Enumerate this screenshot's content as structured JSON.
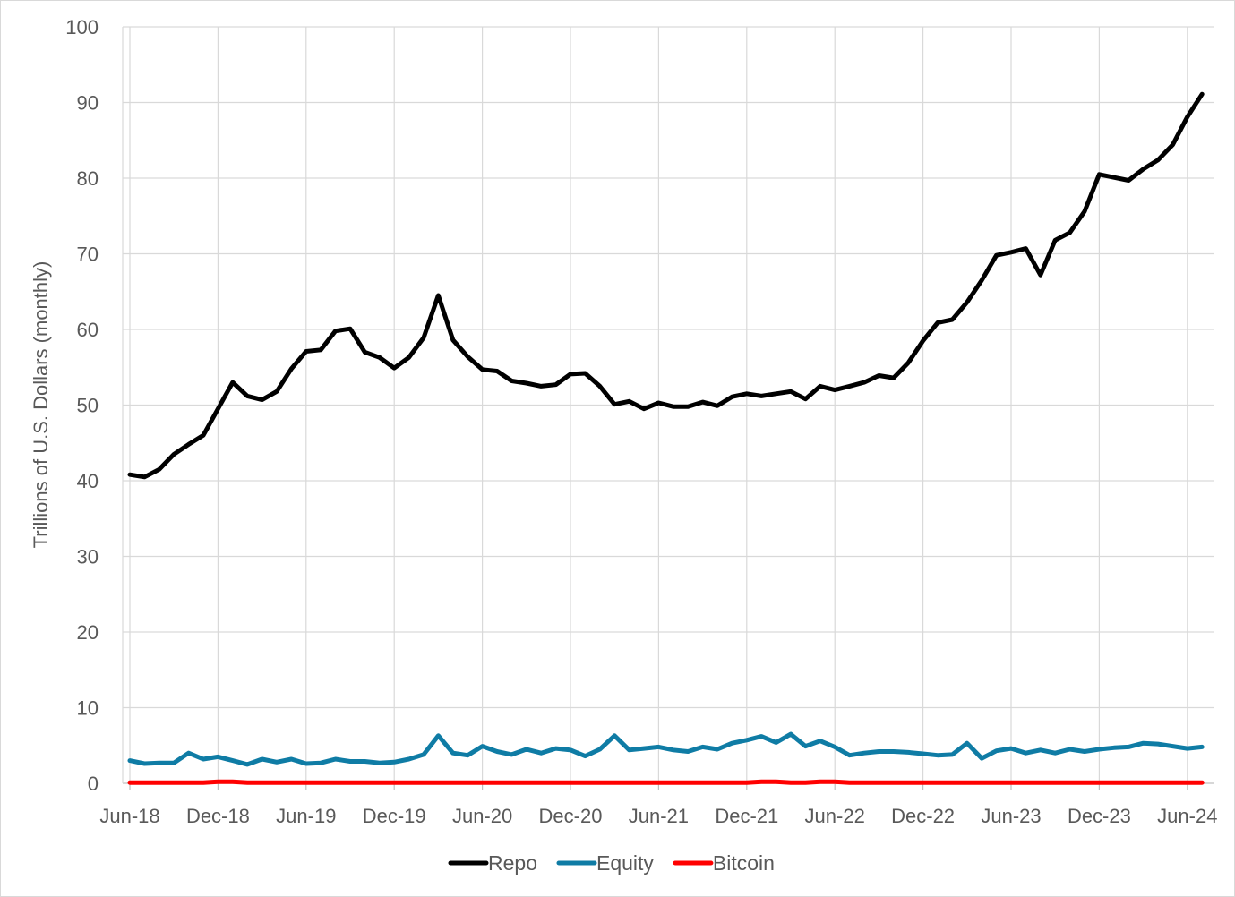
{
  "chart_data": {
    "type": "line",
    "title": "",
    "xlabel": "",
    "ylabel": "Trillions of U.S. Dollars (monthly)",
    "ylim": [
      0,
      100
    ],
    "yticks": [
      0,
      10,
      20,
      30,
      40,
      50,
      60,
      70,
      80,
      90,
      100
    ],
    "x_tick_labels": [
      "Jun-18",
      "Dec-18",
      "Jun-19",
      "Dec-19",
      "Jun-20",
      "Dec-20",
      "Jun-21",
      "Dec-21",
      "Jun-22",
      "Dec-22",
      "Jun-23",
      "Dec-23",
      "Jun-24"
    ],
    "x_start": "Jun-18",
    "x_end": "Aug-24",
    "grid": true,
    "legend_position": "bottom",
    "series": [
      {
        "name": "Repo",
        "color": "#000000",
        "values": [
          40.8,
          40.5,
          41.5,
          43.5,
          44.8,
          46.0,
          49.5,
          53.0,
          51.2,
          50.7,
          51.8,
          54.8,
          57.1,
          57.3,
          59.8,
          60.1,
          57.0,
          56.3,
          54.9,
          56.3,
          58.9,
          64.5,
          58.6,
          56.4,
          54.7,
          54.5,
          53.2,
          52.9,
          52.5,
          52.7,
          54.1,
          54.2,
          52.5,
          50.1,
          50.5,
          49.5,
          50.3,
          49.8,
          49.8,
          50.4,
          49.9,
          51.1,
          51.5,
          51.2,
          51.5,
          51.8,
          50.8,
          52.5,
          52.0,
          52.5,
          53.0,
          53.9,
          53.6,
          55.6,
          58.5,
          60.9,
          61.3,
          63.6,
          66.5,
          69.8,
          70.2,
          70.7,
          67.2,
          71.8,
          72.8,
          75.6,
          80.5,
          80.1,
          79.7,
          81.2,
          82.4,
          84.4,
          88.1,
          91.1
        ]
      },
      {
        "name": "Equity",
        "color": "#0f7ca5",
        "values": [
          3.0,
          2.6,
          2.7,
          2.7,
          4.0,
          3.2,
          3.5,
          3.0,
          2.5,
          3.2,
          2.8,
          3.2,
          2.6,
          2.7,
          3.2,
          2.9,
          2.9,
          2.7,
          2.8,
          3.2,
          3.8,
          6.3,
          4.0,
          3.7,
          4.9,
          4.2,
          3.8,
          4.5,
          4.0,
          4.6,
          4.4,
          3.6,
          4.5,
          6.3,
          4.4,
          4.6,
          4.8,
          4.4,
          4.2,
          4.8,
          4.5,
          5.3,
          5.7,
          6.2,
          5.4,
          6.5,
          4.9,
          5.6,
          4.8,
          3.7,
          4.0,
          4.2,
          4.2,
          4.1,
          3.9,
          3.7,
          3.8,
          5.3,
          3.3,
          4.3,
          4.6,
          4.0,
          4.4,
          4.0,
          4.5,
          4.2,
          4.5,
          4.7,
          4.8,
          5.3,
          5.2,
          4.9,
          4.6,
          4.8
        ]
      },
      {
        "name": "Bitcoin",
        "color": "#ff0000",
        "values": [
          0.1,
          0.1,
          0.1,
          0.1,
          0.1,
          0.1,
          0.2,
          0.2,
          0.1,
          0.1,
          0.1,
          0.1,
          0.1,
          0.1,
          0.1,
          0.1,
          0.1,
          0.1,
          0.1,
          0.1,
          0.1,
          0.1,
          0.1,
          0.1,
          0.1,
          0.1,
          0.1,
          0.1,
          0.1,
          0.1,
          0.1,
          0.1,
          0.1,
          0.1,
          0.1,
          0.1,
          0.1,
          0.1,
          0.1,
          0.1,
          0.1,
          0.1,
          0.1,
          0.2,
          0.2,
          0.1,
          0.1,
          0.2,
          0.2,
          0.1,
          0.1,
          0.1,
          0.1,
          0.1,
          0.1,
          0.1,
          0.1,
          0.1,
          0.1,
          0.1,
          0.1,
          0.1,
          0.1,
          0.1,
          0.1,
          0.1,
          0.1,
          0.1,
          0.1,
          0.1,
          0.1,
          0.1,
          0.1,
          0.1
        ]
      }
    ]
  }
}
